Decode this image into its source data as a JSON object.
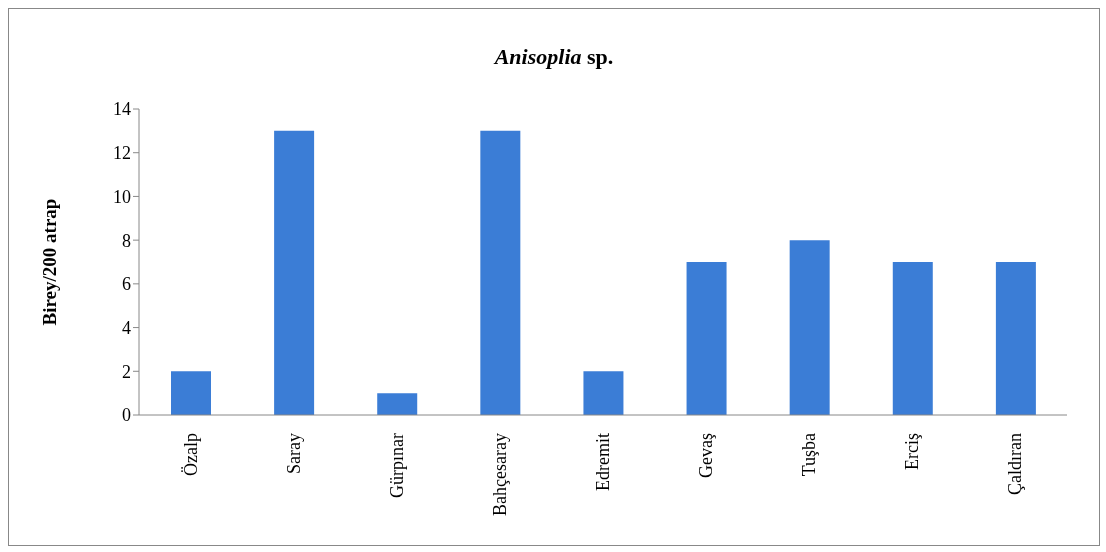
{
  "chart_data": {
    "type": "bar",
    "title": "Anisoplia sp.",
    "ylabel": "Birey/200 atrap",
    "categories": [
      "Özalp",
      "Saray",
      "Gürpınar",
      "Bahçesaray",
      "Edremit",
      "Gevaş",
      "Tuşba",
      "Erciş",
      "Çaldıran"
    ],
    "values": [
      2,
      13,
      1,
      13,
      2,
      7,
      8,
      7,
      7
    ],
    "color": "#3b7dd6",
    "ylim": [
      0,
      14
    ],
    "yticks": [
      0,
      2,
      4,
      6,
      8,
      10,
      12,
      14
    ],
    "grid": false,
    "legend": false
  }
}
